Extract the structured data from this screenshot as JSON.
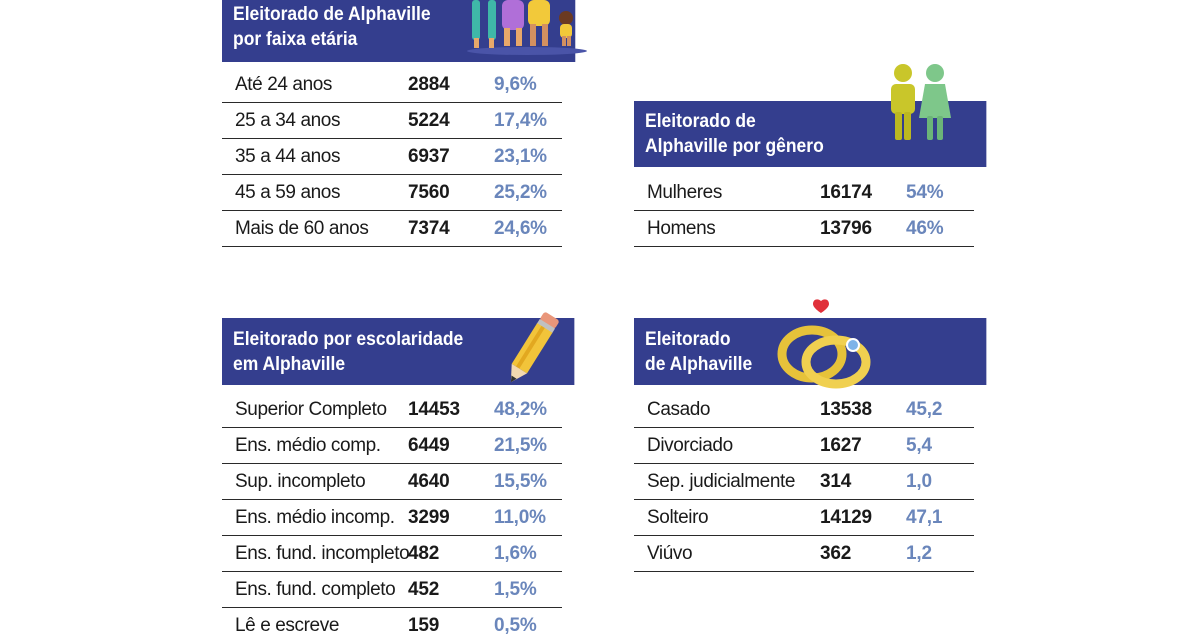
{
  "age": {
    "title_line1": "Eleitorado de Alphaville",
    "title_line2": "por faixa etária",
    "rows": [
      {
        "label": "Até 24 anos",
        "value": "2884",
        "pct": "9,6%"
      },
      {
        "label": "25 a 34 anos",
        "value": "5224",
        "pct": "17,4%"
      },
      {
        "label": "35 a 44 anos",
        "value": "6937",
        "pct": "23,1%"
      },
      {
        "label": "45 a 59 anos",
        "value": "7560",
        "pct": "25,2%"
      },
      {
        "label": "Mais de 60 anos",
        "value": "7374",
        "pct": "24,6%"
      }
    ]
  },
  "gender": {
    "title_line1": "Eleitorado de",
    "title_line2": "Alphaville por gênero",
    "rows": [
      {
        "label": "Mulheres",
        "value": "16174",
        "pct": "54%"
      },
      {
        "label": "Homens",
        "value": "13796",
        "pct": "46%"
      }
    ]
  },
  "education": {
    "title_line1": "Eleitorado por escolaridade",
    "title_line2": "em Alphaville",
    "rows": [
      {
        "label": "Superior Completo",
        "value": "14453",
        "pct": "48,2%"
      },
      {
        "label": "Ens. médio comp.",
        "value": "6449",
        "pct": "21,5%"
      },
      {
        "label": "Sup. incompleto",
        "value": "4640",
        "pct": "15,5%"
      },
      {
        "label": "Ens. médio incomp.",
        "value": "3299",
        "pct": "11,0%"
      },
      {
        "label": "Ens. fund. incompleto",
        "value": "482",
        "pct": "1,6%"
      },
      {
        "label": "Ens. fund. completo",
        "value": "452",
        "pct": "1,5%"
      },
      {
        "label": "Lê e escreve",
        "value": "159",
        "pct": "0,5%"
      }
    ]
  },
  "marital": {
    "title_line1": "Eleitorado",
    "title_line2": "de Alphaville",
    "rows": [
      {
        "label": "Casado",
        "value": "13538",
        "pct": "45,2"
      },
      {
        "label": "Divorciado",
        "value": "1627",
        "pct": "5,4"
      },
      {
        "label": "Sep. judicialmente",
        "value": "314",
        "pct": "1,0"
      },
      {
        "label": "Solteiro",
        "value": "14129",
        "pct": "47,1"
      },
      {
        "label": "Viúvo",
        "value": "362",
        "pct": "1,2"
      }
    ]
  },
  "colors": {
    "header_bg": "#343e8e",
    "percent_text": "#6a86bb"
  },
  "icons": {
    "age": "family-icon",
    "gender": "people-icon",
    "education": "pencil-icon",
    "marital": "rings-icon"
  }
}
